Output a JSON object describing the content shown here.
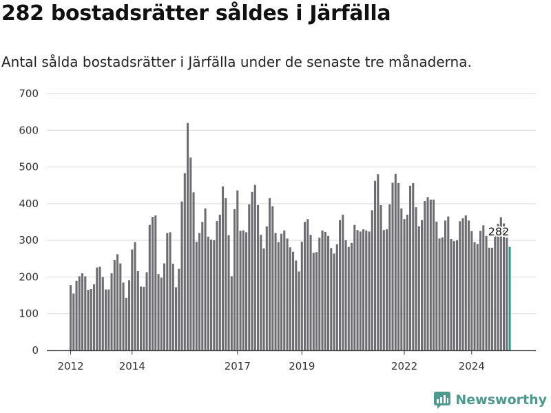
{
  "chart_data": {
    "type": "bar",
    "title": "282 bostadsrätter såldes i Järfälla",
    "subtitle": "Antal sålda bostadsrätter i Järfälla under de senaste tre månaderna.",
    "xlabel": "",
    "ylabel": "",
    "ylim": [
      0,
      700
    ],
    "yticks": [
      0,
      100,
      200,
      300,
      400,
      500,
      600,
      700
    ],
    "xticks": [
      {
        "label": "2012",
        "index": 0
      },
      {
        "label": "2014",
        "index": 21
      },
      {
        "label": "2017",
        "index": 57
      },
      {
        "label": "2019",
        "index": 79
      },
      {
        "label": "2022",
        "index": 114
      },
      {
        "label": "2024",
        "index": 137
      }
    ],
    "grid": true,
    "highlight_color": "#2a9d8f",
    "bar_color": "#6d6d72",
    "annotation": {
      "index": 150,
      "text": "282"
    },
    "values": [
      178,
      155,
      190,
      202,
      210,
      202,
      165,
      167,
      180,
      226,
      228,
      200,
      166,
      166,
      210,
      246,
      262,
      237,
      185,
      143,
      191,
      275,
      295,
      216,
      174,
      173,
      213,
      342,
      364,
      368,
      208,
      198,
      237,
      320,
      322,
      236,
      172,
      222,
      406,
      483,
      620,
      526,
      431,
      296,
      320,
      350,
      387,
      310,
      302,
      300,
      353,
      370,
      447,
      415,
      314,
      202,
      385,
      436,
      326,
      327,
      322,
      398,
      432,
      451,
      396,
      315,
      278,
      338,
      415,
      393,
      320,
      295,
      318,
      327,
      305,
      281,
      269,
      245,
      215,
      296,
      350,
      358,
      315,
      266,
      268,
      307,
      327,
      323,
      312,
      279,
      264,
      289,
      355,
      370,
      300,
      282,
      293,
      342,
      328,
      324,
      330,
      327,
      324,
      382,
      462,
      480,
      396,
      328,
      330,
      398,
      457,
      481,
      456,
      387,
      358,
      370,
      449,
      456,
      390,
      338,
      355,
      407,
      418,
      411,
      411,
      351,
      305,
      308,
      354,
      365,
      304,
      298,
      300,
      352,
      360,
      368,
      354,
      325,
      295,
      290,
      326,
      341,
      312,
      280,
      280,
      318,
      345,
      363,
      346,
      307,
      282
    ]
  },
  "brand": {
    "name": "Newsworthy",
    "icon": "newsworthy-logo-icon",
    "color": "#4a9a8f"
  }
}
